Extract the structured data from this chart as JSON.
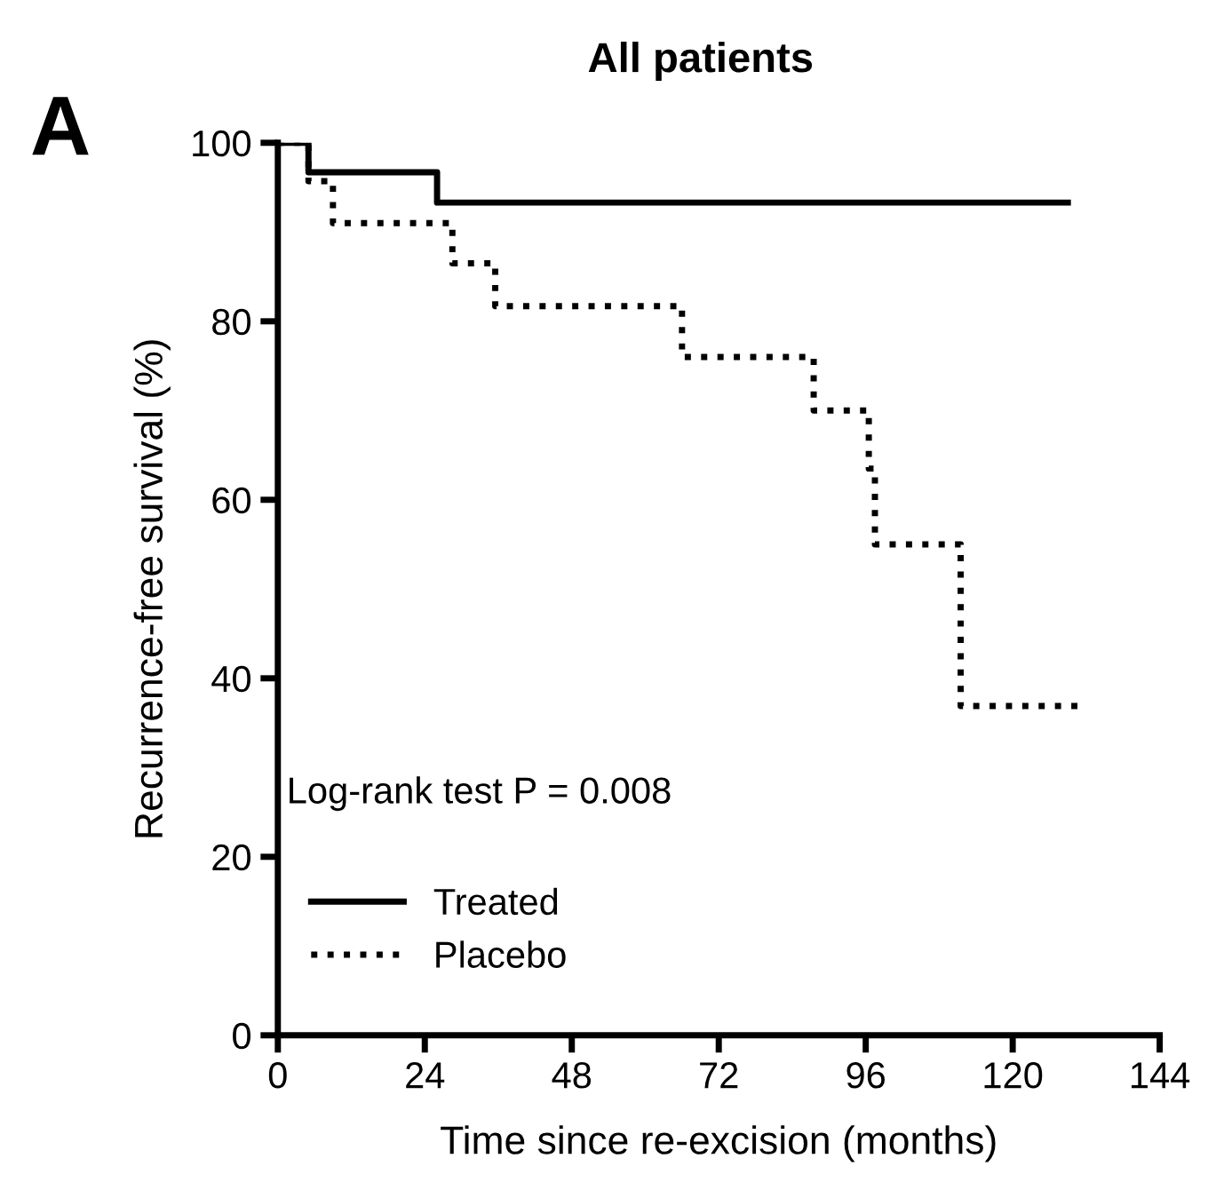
{
  "chart_data": {
    "type": "step",
    "title": "All patients",
    "xlabel": "Time since re-excision (months)",
    "ylabel": "Recurrence-free survival (%)",
    "annotations": [
      "A",
      "Log-rank test P = 0.008"
    ],
    "series": [
      {
        "name": "Treated",
        "color": "#000000",
        "line_style": "solid",
        "x": [
          0,
          5,
          26,
          129
        ],
        "values": [
          100,
          96.7,
          93.3,
          93.3
        ]
      },
      {
        "name": "Placebo",
        "color": "#000000",
        "line_style": "dotted",
        "x": [
          0,
          5,
          9,
          28.5,
          35.5,
          66,
          87.5,
          96.5,
          97.5,
          111.5,
          131.5
        ],
        "values": [
          100,
          95.7,
          91,
          86.5,
          81.7,
          76,
          70,
          63.5,
          55,
          36.9,
          36.9
        ]
      }
    ],
    "xlim": [
      0,
      144
    ],
    "xticks": [
      0,
      24,
      48,
      72,
      96,
      120,
      144
    ],
    "ylim": [
      0,
      100
    ],
    "yticks": [
      0,
      20,
      40,
      60,
      80,
      100
    ],
    "grid": false,
    "legend": "bottom left"
  }
}
